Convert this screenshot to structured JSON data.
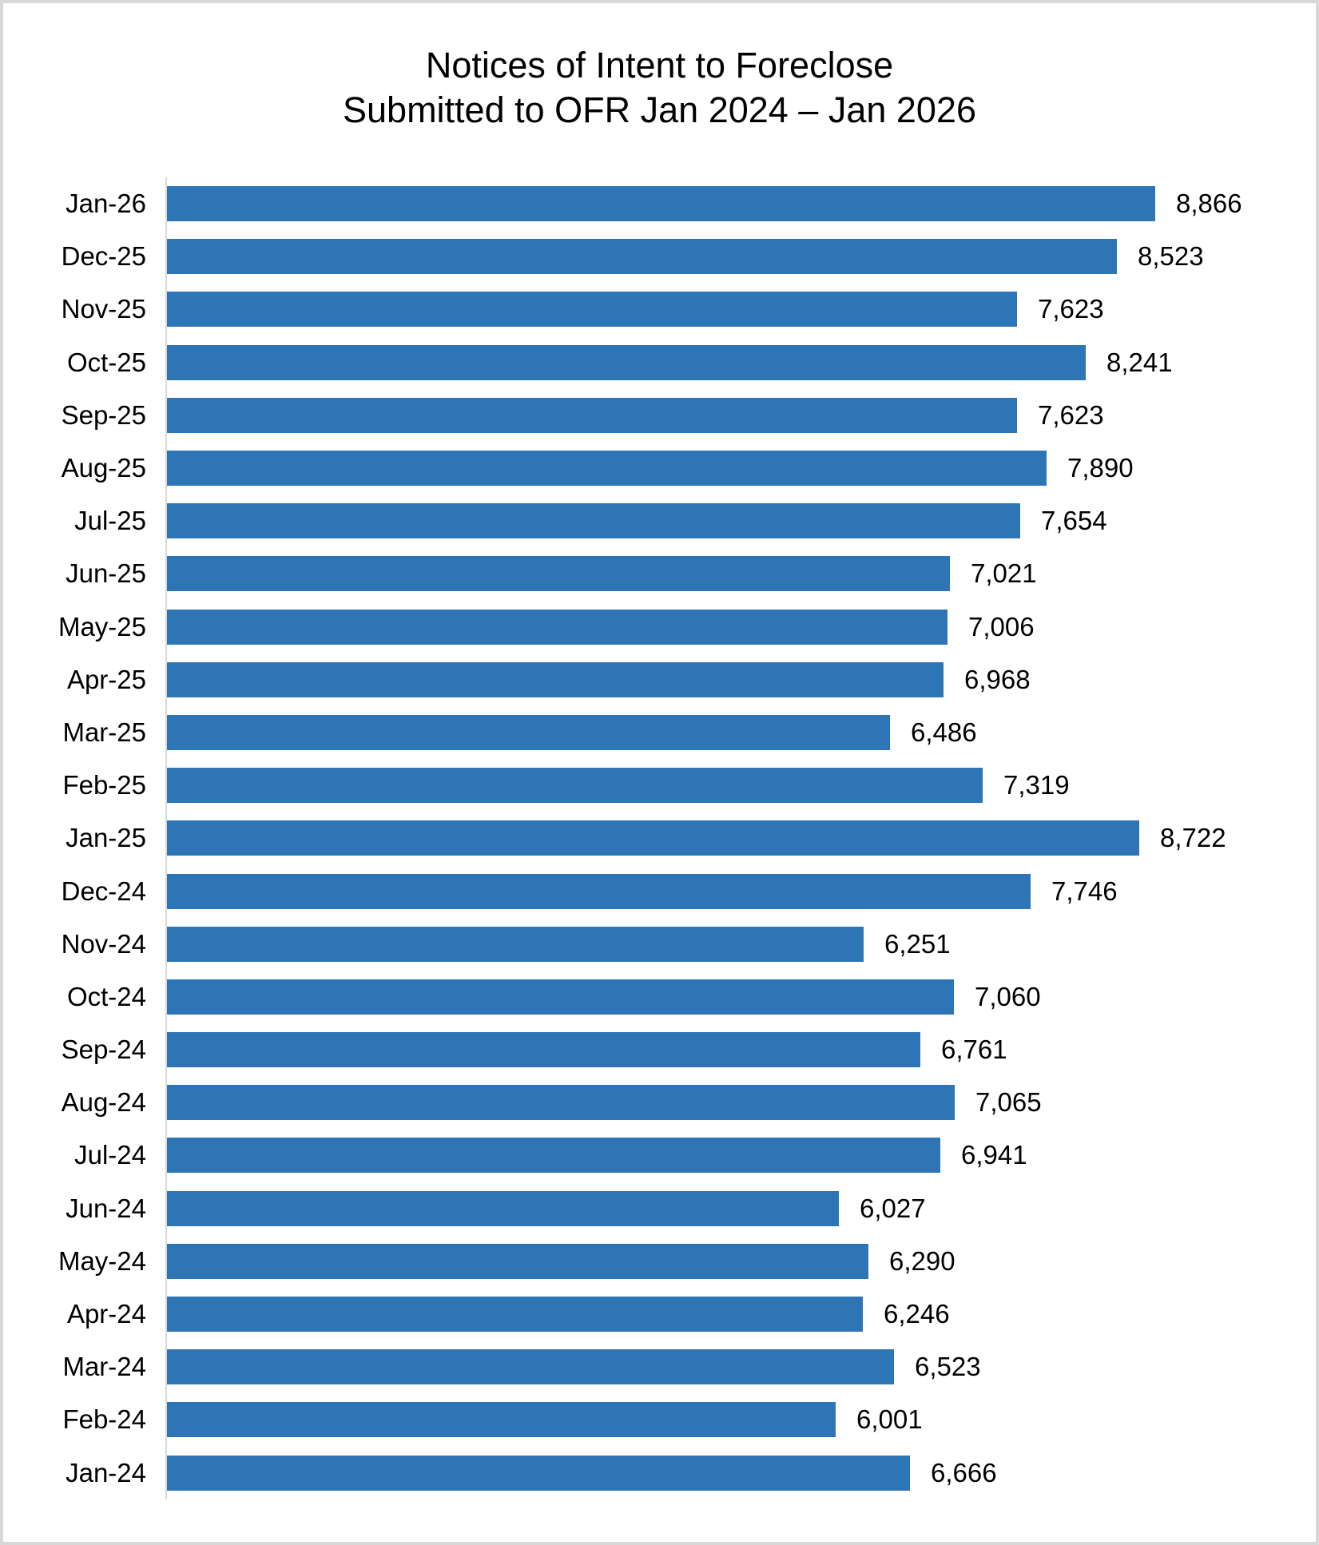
{
  "title": {
    "line1": "Notices of Intent to Foreclose",
    "line2": "Submitted to OFR Jan 2024 – Jan 2026"
  },
  "colors": {
    "bar": "#2E75B6",
    "axis_line": "#D9D9D9",
    "text": "#000000",
    "frame_border": "#D8D8D8",
    "background": "#FFFFFF"
  },
  "chart_data": {
    "type": "bar",
    "orientation": "horizontal",
    "title": "Notices of Intent to Foreclose Submitted to OFR Jan 2024 – Jan 2026",
    "xlabel": "",
    "ylabel": "",
    "grid": false,
    "legend": false,
    "axis_max": 8866,
    "categories": [
      "Jan-26",
      "Dec-25",
      "Nov-25",
      "Oct-25",
      "Sep-25",
      "Aug-25",
      "Jul-25",
      "Jun-25",
      "May-25",
      "Apr-25",
      "Mar-25",
      "Feb-25",
      "Jan-25",
      "Dec-24",
      "Nov-24",
      "Oct-24",
      "Sep-24",
      "Aug-24",
      "Jul-24",
      "Jun-24",
      "May-24",
      "Apr-24",
      "Mar-24",
      "Feb-24",
      "Jan-24"
    ],
    "values": [
      8866,
      8523,
      7623,
      8241,
      7623,
      7890,
      7654,
      7021,
      7006,
      6968,
      6486,
      7319,
      8722,
      7746,
      6251,
      7060,
      6761,
      7065,
      6941,
      6027,
      6290,
      6246,
      6523,
      6001,
      6666
    ],
    "value_labels": [
      "8,866",
      "8,523",
      "7,623",
      "8,241",
      "7,623",
      "7,890",
      "7,654",
      "7,021",
      "7,006",
      "6,968",
      "6,486",
      "7,319",
      "8,722",
      "7,746",
      "6,251",
      "7,060",
      "6,761",
      "7,065",
      "6,941",
      "6,027",
      "6,290",
      "6,246",
      "6,523",
      "6,001",
      "6,666"
    ]
  }
}
